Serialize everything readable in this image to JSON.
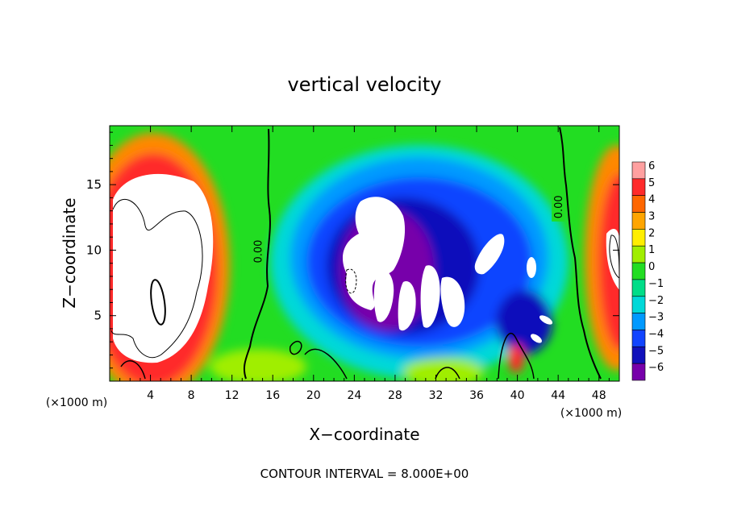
{
  "chart_data": {
    "type": "heatmap",
    "title": "vertical velocity",
    "xlabel": "X−coordinate",
    "ylabel": "Z−coordinate",
    "x_units": "(×1000 m)",
    "z_units": "(×1000 m)",
    "footer": "CONTOUR INTERVAL = 8.000E+00",
    "xlim": [
      0,
      50
    ],
    "ylim": [
      0,
      19.5
    ],
    "x_ticks": [
      4,
      8,
      12,
      16,
      20,
      24,
      28,
      32,
      36,
      40,
      44,
      48
    ],
    "y_ticks": [
      5,
      10,
      15
    ],
    "colorbar": {
      "levels": [
        6,
        5,
        4,
        3,
        2,
        1,
        0,
        -1,
        -2,
        -3,
        -4,
        -5,
        -6
      ],
      "labels": [
        "6",
        "5",
        "4",
        "3",
        "2",
        "1",
        "0",
        "−1",
        "−2",
        "−3",
        "−4",
        "−5",
        "−6"
      ],
      "colors": [
        "#ffa0a0",
        "#ff2a2a",
        "#ff6600",
        "#ffa500",
        "#ffee00",
        "#a0ee00",
        "#22dd22",
        "#00dd88",
        "#00d8d8",
        "#0099ff",
        "#1144ff",
        "#1111bb",
        "#7700aa"
      ]
    },
    "contour_labels": [
      "0.00",
      "0.00"
    ],
    "contour_label_positions": [
      [
        14.5,
        9.9
      ],
      [
        44.0,
        13.3
      ]
    ],
    "features": [
      {
        "kind": "updraft",
        "x": 5.0,
        "z": 10.0,
        "value": 8
      },
      {
        "kind": "updraft",
        "x": 49.0,
        "z": 9.0,
        "value": 6
      },
      {
        "kind": "downdraft",
        "x": 28.0,
        "z": 8.0,
        "value": -10
      },
      {
        "kind": "downdraft",
        "x": 38.0,
        "z": 9.5,
        "value": -8
      },
      {
        "kind": "downdraft",
        "x": 41.0,
        "z": 5.0,
        "value": -7
      }
    ]
  }
}
